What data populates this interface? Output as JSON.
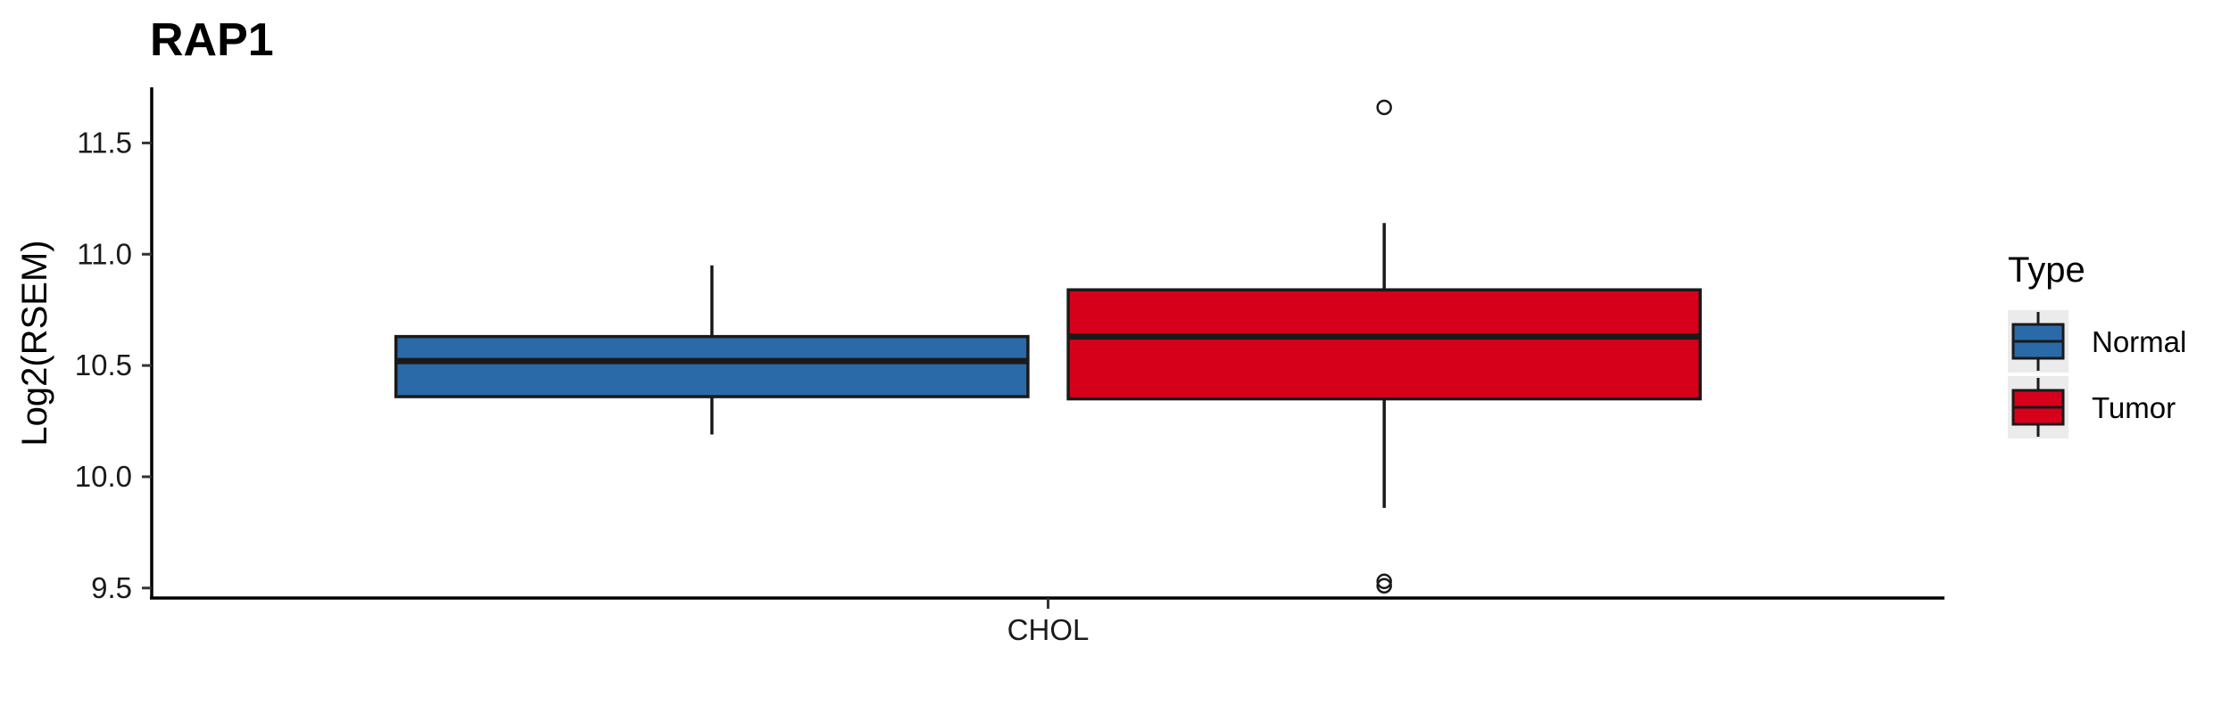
{
  "chart_data": {
    "type": "boxplot",
    "title": "RAP1",
    "xlabel": "",
    "ylabel": "Log2(RSEM)",
    "categories": [
      "CHOL"
    ],
    "ylim": [
      9.455,
      11.75
    ],
    "yticks": [
      9.5,
      10.0,
      10.5,
      11.0,
      11.5
    ],
    "ytick_labels": [
      "9.5",
      "10.0",
      "10.5",
      "11.0",
      "11.5"
    ],
    "grid": false,
    "legend": {
      "title": "Type",
      "position": "right"
    },
    "series": [
      {
        "name": "Normal",
        "color": "#2b6aa8",
        "whisker_low": 10.19,
        "q1": 10.36,
        "median": 10.52,
        "q3": 10.63,
        "whisker_high": 10.95,
        "outliers": []
      },
      {
        "name": "Tumor",
        "color": "#d7001a",
        "whisker_low": 9.86,
        "q1": 10.35,
        "median": 10.63,
        "q3": 10.84,
        "whisker_high": 11.14,
        "outliers": [
          11.66,
          9.53,
          9.51
        ]
      }
    ]
  }
}
